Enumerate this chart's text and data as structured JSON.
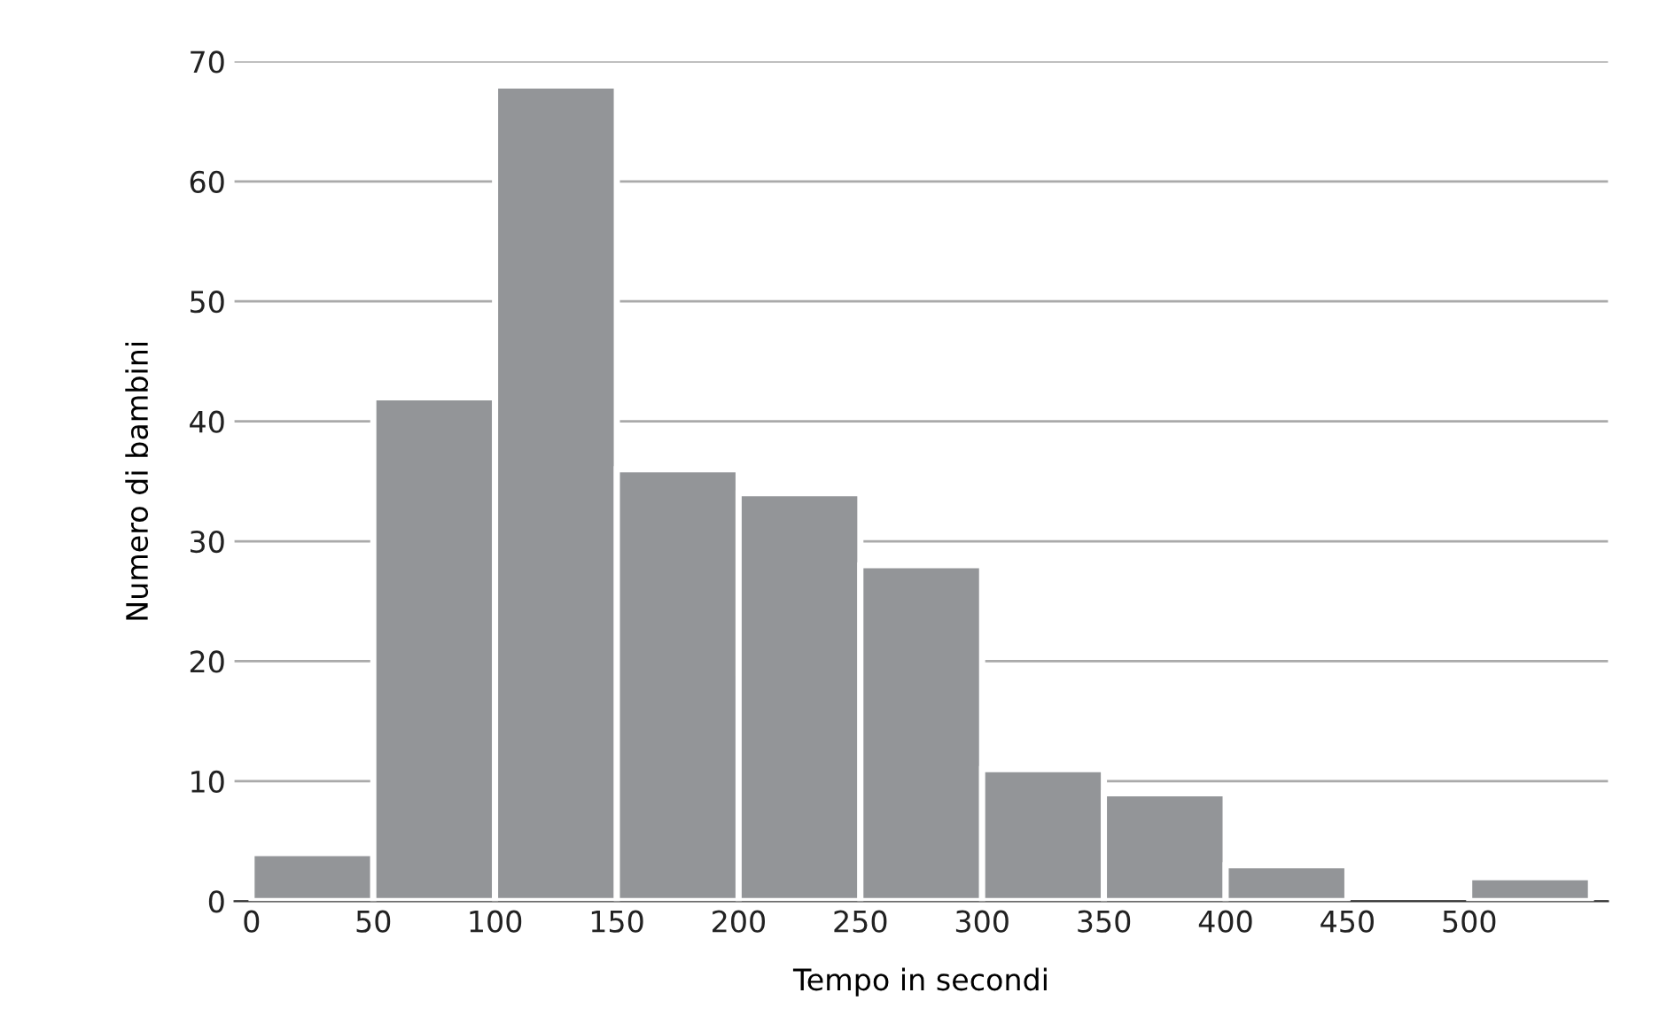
{
  "chart_data": {
    "type": "histogram",
    "xlabel": "Tempo in secondi",
    "ylabel": "Numero di bambini",
    "bins": [
      0,
      50,
      100,
      150,
      200,
      250,
      300,
      350,
      400,
      450,
      500,
      550
    ],
    "values": [
      4,
      42,
      68,
      36,
      34,
      28,
      11,
      9,
      3,
      0,
      2
    ],
    "color": "#939598",
    "xlim": [
      -7,
      557
    ],
    "xticks": [
      0,
      50,
      100,
      150,
      200,
      250,
      300,
      350,
      400,
      450,
      500
    ],
    "ylim": [
      0,
      70
    ],
    "yticks": [
      0,
      10,
      20,
      30,
      40,
      50,
      60,
      70
    ],
    "grid": "y"
  }
}
